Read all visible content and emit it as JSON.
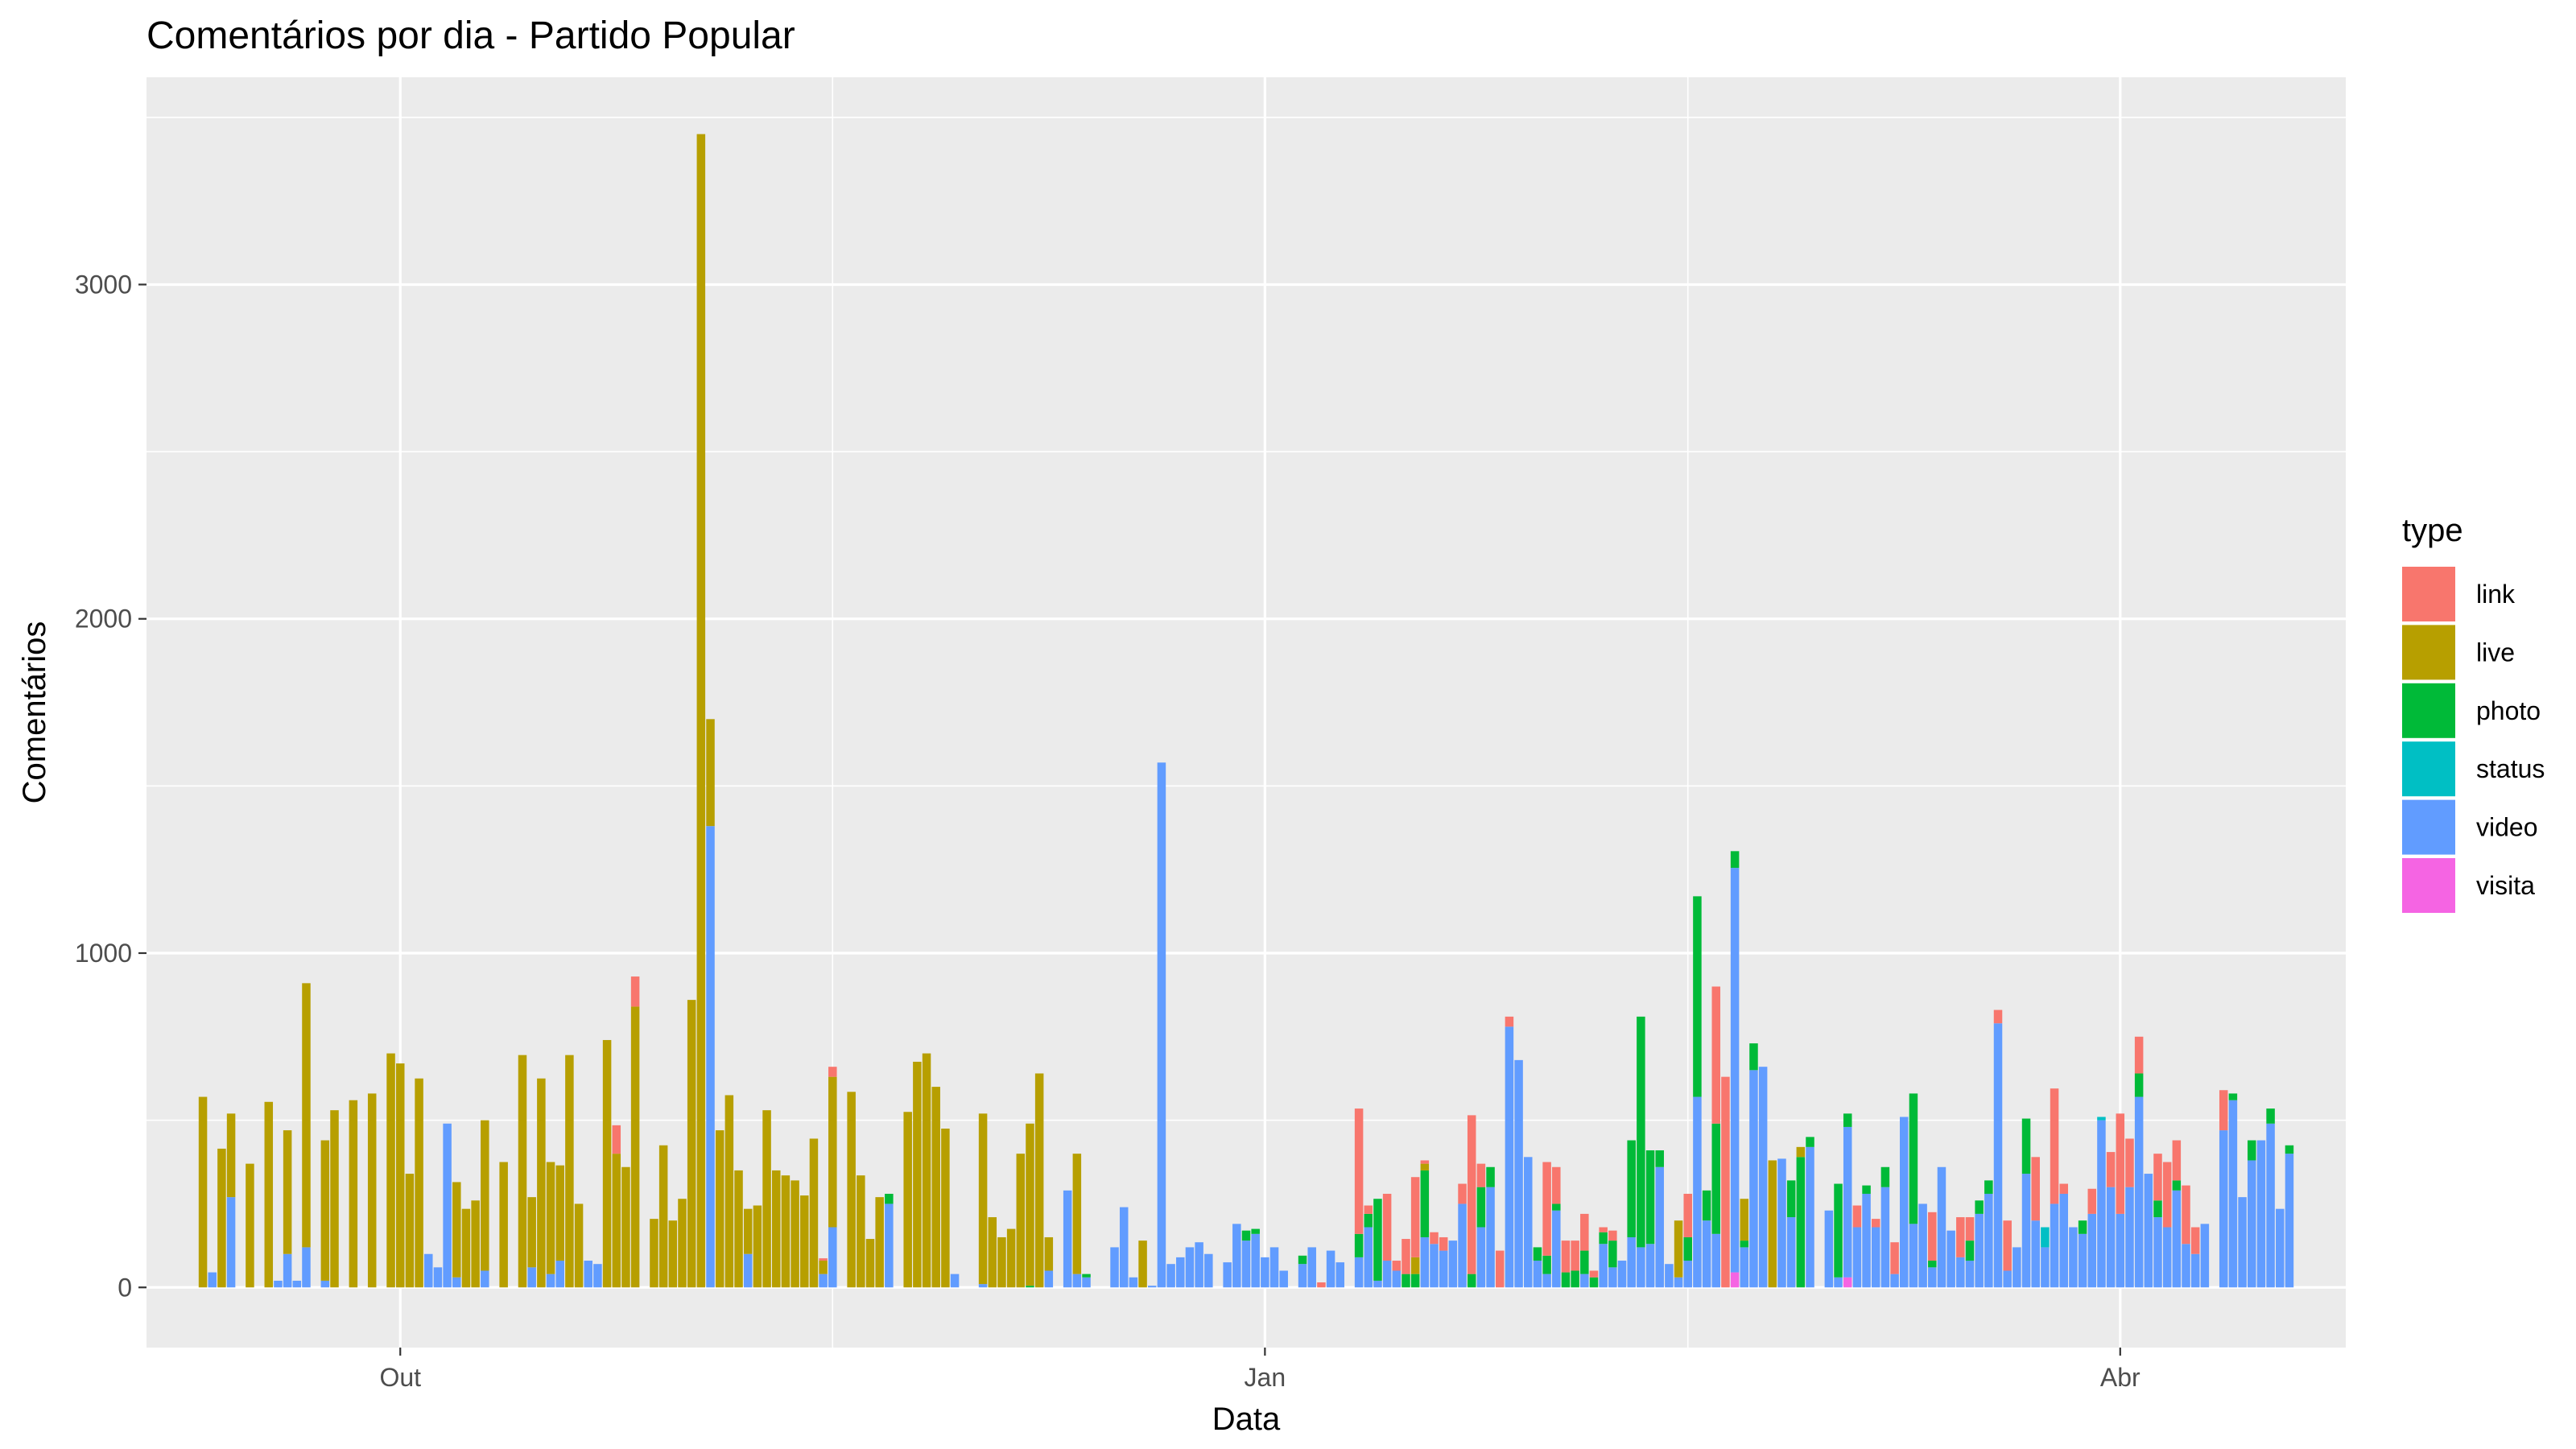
{
  "chart_data": {
    "type": "bar",
    "stacked": true,
    "title": "Comentários por dia - Partido Popular",
    "xlabel": "Data",
    "ylabel": "Comentários",
    "x_axis": {
      "kind": "date",
      "range": [
        "2019-09-04",
        "2020-04-25"
      ],
      "ticks": [
        {
          "date": "2019-10-01",
          "label": "Out"
        },
        {
          "date": "2020-01-01",
          "label": "Jan"
        },
        {
          "date": "2020-04-01",
          "label": "Abr"
        }
      ],
      "minor_gridlines": [
        "2019-11-16",
        "2020-02-15"
      ]
    },
    "y_axis": {
      "ylim": [
        -180,
        3620
      ],
      "ticks": [
        0,
        1000,
        2000,
        3000
      ],
      "minor_gridlines": [
        500,
        1500,
        2500,
        3500
      ]
    },
    "grid": true,
    "legend": {
      "title": "type",
      "position": "right",
      "items": [
        {
          "key": "link",
          "label": "link",
          "color": "#F8766D"
        },
        {
          "key": "live",
          "label": "live",
          "color": "#B79F00"
        },
        {
          "key": "photo",
          "label": "photo",
          "color": "#00BA38"
        },
        {
          "key": "status",
          "label": "status",
          "color": "#00BFC4"
        },
        {
          "key": "video",
          "label": "video",
          "color": "#619CFF"
        },
        {
          "key": "visita",
          "label": "visita",
          "color": "#F564E3"
        }
      ]
    },
    "series_order": [
      "visita",
      "video",
      "status",
      "photo",
      "live",
      "link"
    ],
    "days": [
      {
        "date": "2019-09-10",
        "live": 570
      },
      {
        "date": "2019-09-11",
        "video": 45
      },
      {
        "date": "2019-09-12",
        "live": 415
      },
      {
        "date": "2019-09-13",
        "video": 270,
        "live": 250
      },
      {
        "date": "2019-09-15",
        "live": 370
      },
      {
        "date": "2019-09-17",
        "live": 555
      },
      {
        "date": "2019-09-18",
        "video": 20
      },
      {
        "date": "2019-09-19",
        "video": 100,
        "live": 370
      },
      {
        "date": "2019-09-20",
        "video": 20
      },
      {
        "date": "2019-09-21",
        "video": 120,
        "live": 790
      },
      {
        "date": "2019-09-23",
        "video": 20,
        "live": 420
      },
      {
        "date": "2019-09-24",
        "live": 530
      },
      {
        "date": "2019-09-26",
        "live": 560
      },
      {
        "date": "2019-09-28",
        "live": 580
      },
      {
        "date": "2019-09-30",
        "live": 700
      },
      {
        "date": "2019-10-01",
        "live": 670
      },
      {
        "date": "2019-10-02",
        "live": 340
      },
      {
        "date": "2019-10-03",
        "live": 625
      },
      {
        "date": "2019-10-04",
        "video": 100
      },
      {
        "date": "2019-10-05",
        "video": 60
      },
      {
        "date": "2019-10-06",
        "video": 490
      },
      {
        "date": "2019-10-07",
        "video": 30,
        "live": 285
      },
      {
        "date": "2019-10-08",
        "live": 235
      },
      {
        "date": "2019-10-09",
        "live": 260
      },
      {
        "date": "2019-10-10",
        "video": 50,
        "live": 450
      },
      {
        "date": "2019-10-12",
        "live": 375
      },
      {
        "date": "2019-10-14",
        "live": 695
      },
      {
        "date": "2019-10-15",
        "video": 60,
        "live": 210
      },
      {
        "date": "2019-10-16",
        "live": 625
      },
      {
        "date": "2019-10-17",
        "video": 40,
        "live": 335
      },
      {
        "date": "2019-10-18",
        "video": 80,
        "live": 285
      },
      {
        "date": "2019-10-19",
        "live": 695
      },
      {
        "date": "2019-10-20",
        "live": 250
      },
      {
        "date": "2019-10-21",
        "video": 80
      },
      {
        "date": "2019-10-22",
        "video": 70
      },
      {
        "date": "2019-10-23",
        "live": 740
      },
      {
        "date": "2019-10-24",
        "live": 400,
        "link": 85
      },
      {
        "date": "2019-10-25",
        "live": 360
      },
      {
        "date": "2019-10-26",
        "live": 840,
        "link": 90
      },
      {
        "date": "2019-10-28",
        "live": 205
      },
      {
        "date": "2019-10-29",
        "live": 425
      },
      {
        "date": "2019-10-30",
        "live": 200
      },
      {
        "date": "2019-10-31",
        "live": 265
      },
      {
        "date": "2019-11-01",
        "live": 860
      },
      {
        "date": "2019-11-02",
        "live": 3450
      },
      {
        "date": "2019-11-03",
        "video": 1380,
        "live": 320
      },
      {
        "date": "2019-11-04",
        "live": 470
      },
      {
        "date": "2019-11-05",
        "live": 575
      },
      {
        "date": "2019-11-06",
        "live": 350
      },
      {
        "date": "2019-11-07",
        "video": 100,
        "live": 135
      },
      {
        "date": "2019-11-08",
        "live": 245
      },
      {
        "date": "2019-11-09",
        "live": 530
      },
      {
        "date": "2019-11-10",
        "live": 350
      },
      {
        "date": "2019-11-11",
        "live": 335
      },
      {
        "date": "2019-11-12",
        "live": 320
      },
      {
        "date": "2019-11-13",
        "live": 275
      },
      {
        "date": "2019-11-14",
        "live": 445
      },
      {
        "date": "2019-11-15",
        "video": 40,
        "live": 40,
        "link": 7
      },
      {
        "date": "2019-11-16",
        "video": 180,
        "live": 450,
        "link": 30
      },
      {
        "date": "2019-11-18",
        "live": 585
      },
      {
        "date": "2019-11-19",
        "live": 335
      },
      {
        "date": "2019-11-20",
        "live": 145
      },
      {
        "date": "2019-11-21",
        "live": 270
      },
      {
        "date": "2019-11-22",
        "video": 250,
        "photo": 30
      },
      {
        "date": "2019-11-24",
        "live": 525
      },
      {
        "date": "2019-11-25",
        "live": 675
      },
      {
        "date": "2019-11-26",
        "live": 700
      },
      {
        "date": "2019-11-27",
        "live": 600
      },
      {
        "date": "2019-11-28",
        "live": 475
      },
      {
        "date": "2019-11-29",
        "video": 40
      },
      {
        "date": "2019-12-02",
        "video": 10,
        "live": 510
      },
      {
        "date": "2019-12-03",
        "live": 210
      },
      {
        "date": "2019-12-04",
        "live": 150
      },
      {
        "date": "2019-12-05",
        "live": 175
      },
      {
        "date": "2019-12-06",
        "live": 400
      },
      {
        "date": "2019-12-07",
        "photo": 5,
        "live": 485
      },
      {
        "date": "2019-12-08",
        "live": 640
      },
      {
        "date": "2019-12-09",
        "video": 50,
        "live": 100
      },
      {
        "date": "2019-12-11",
        "video": 290
      },
      {
        "date": "2019-12-12",
        "video": 40,
        "live": 360
      },
      {
        "date": "2019-12-13",
        "video": 30,
        "photo": 10
      },
      {
        "date": "2019-12-16",
        "video": 120
      },
      {
        "date": "2019-12-17",
        "video": 240
      },
      {
        "date": "2019-12-18",
        "video": 30
      },
      {
        "date": "2019-12-19",
        "live": 140
      },
      {
        "date": "2019-12-20",
        "video": 5
      },
      {
        "date": "2019-12-21",
        "video": 1570
      },
      {
        "date": "2019-12-22",
        "video": 70
      },
      {
        "date": "2019-12-23",
        "video": 90
      },
      {
        "date": "2019-12-24",
        "video": 120
      },
      {
        "date": "2019-12-25",
        "video": 135
      },
      {
        "date": "2019-12-26",
        "video": 100
      },
      {
        "date": "2019-12-28",
        "video": 75
      },
      {
        "date": "2019-12-29",
        "video": 190
      },
      {
        "date": "2019-12-30",
        "video": 140,
        "photo": 30
      },
      {
        "date": "2019-12-31",
        "video": 160,
        "photo": 15
      },
      {
        "date": "2020-01-01",
        "video": 90
      },
      {
        "date": "2020-01-02",
        "video": 120
      },
      {
        "date": "2020-01-03",
        "video": 50
      },
      {
        "date": "2020-01-05",
        "video": 70,
        "photo": 25
      },
      {
        "date": "2020-01-06",
        "video": 120
      },
      {
        "date": "2020-01-07",
        "link": 15
      },
      {
        "date": "2020-01-08",
        "video": 110
      },
      {
        "date": "2020-01-09",
        "video": 75
      },
      {
        "date": "2020-01-11",
        "video": 90,
        "photo": 70,
        "link": 375
      },
      {
        "date": "2020-01-12",
        "video": 180,
        "photo": 40,
        "link": 25
      },
      {
        "date": "2020-01-13",
        "video": 20,
        "photo": 245
      },
      {
        "date": "2020-01-14",
        "video": 80,
        "link": 200
      },
      {
        "date": "2020-01-15",
        "video": 50,
        "link": 30
      },
      {
        "date": "2020-01-16",
        "photo": 40,
        "link": 105
      },
      {
        "date": "2020-01-17",
        "photo": 40,
        "live": 50,
        "link": 240
      },
      {
        "date": "2020-01-18",
        "video": 150,
        "photo": 200,
        "live": 20,
        "link": 10
      },
      {
        "date": "2020-01-19",
        "video": 130,
        "link": 35
      },
      {
        "date": "2020-01-20",
        "video": 110,
        "link": 40
      },
      {
        "date": "2020-01-21",
        "video": 140
      },
      {
        "date": "2020-01-22",
        "video": 250,
        "link": 60
      },
      {
        "date": "2020-01-23",
        "photo": 40,
        "link": 475
      },
      {
        "date": "2020-01-24",
        "video": 180,
        "photo": 120,
        "link": 70
      },
      {
        "date": "2020-01-25",
        "video": 300,
        "photo": 60
      },
      {
        "date": "2020-01-26",
        "link": 110
      },
      {
        "date": "2020-01-27",
        "video": 780,
        "link": 30
      },
      {
        "date": "2020-01-28",
        "video": 680
      },
      {
        "date": "2020-01-29",
        "video": 390
      },
      {
        "date": "2020-01-30",
        "video": 80,
        "photo": 40
      },
      {
        "date": "2020-01-31",
        "video": 40,
        "photo": 55,
        "link": 280
      },
      {
        "date": "2020-02-01",
        "video": 230,
        "photo": 20,
        "link": 110
      },
      {
        "date": "2020-02-02",
        "photo": 45,
        "link": 95
      },
      {
        "date": "2020-02-03",
        "photo": 50,
        "link": 90
      },
      {
        "date": "2020-02-04",
        "video": 40,
        "photo": 70,
        "link": 110
      },
      {
        "date": "2020-02-05",
        "photo": 30,
        "link": 20
      },
      {
        "date": "2020-02-06",
        "video": 130,
        "photo": 35,
        "link": 15
      },
      {
        "date": "2020-02-07",
        "video": 60,
        "photo": 80,
        "link": 30
      },
      {
        "date": "2020-02-08",
        "video": 80
      },
      {
        "date": "2020-02-09",
        "video": 150,
        "photo": 290
      },
      {
        "date": "2020-02-10",
        "video": 120,
        "photo": 690
      },
      {
        "date": "2020-02-11",
        "video": 130,
        "photo": 280
      },
      {
        "date": "2020-02-12",
        "video": 360,
        "photo": 50
      },
      {
        "date": "2020-02-13",
        "video": 70
      },
      {
        "date": "2020-02-14",
        "video": 30,
        "live": 170
      },
      {
        "date": "2020-02-15",
        "video": 80,
        "photo": 70,
        "link": 130
      },
      {
        "date": "2020-02-16",
        "video": 570,
        "photo": 600
      },
      {
        "date": "2020-02-17",
        "video": 200,
        "photo": 90
      },
      {
        "date": "2020-02-18",
        "video": 160,
        "photo": 330,
        "link": 410
      },
      {
        "date": "2020-02-19",
        "link": 630
      },
      {
        "date": "2020-02-20",
        "visita": 45,
        "video": 1210,
        "photo": 50
      },
      {
        "date": "2020-02-21",
        "video": 120,
        "photo": 20,
        "live": 125
      },
      {
        "date": "2020-02-22",
        "video": 650,
        "photo": 80
      },
      {
        "date": "2020-02-23",
        "video": 660
      },
      {
        "date": "2020-02-24",
        "live": 380
      },
      {
        "date": "2020-02-25",
        "video": 385
      },
      {
        "date": "2020-02-26",
        "video": 210,
        "photo": 110
      },
      {
        "date": "2020-02-27",
        "photo": 390,
        "live": 30
      },
      {
        "date": "2020-02-28",
        "video": 420,
        "photo": 30
      },
      {
        "date": "2020-03-01",
        "video": 230
      },
      {
        "date": "2020-03-02",
        "video": 30,
        "photo": 280
      },
      {
        "date": "2020-03-03",
        "visita": 30,
        "video": 450,
        "photo": 40
      },
      {
        "date": "2020-03-04",
        "video": 180,
        "link": 65
      },
      {
        "date": "2020-03-05",
        "video": 280,
        "photo": 25
      },
      {
        "date": "2020-03-06",
        "video": 180,
        "link": 25
      },
      {
        "date": "2020-03-07",
        "video": 300,
        "photo": 60
      },
      {
        "date": "2020-03-08",
        "video": 40,
        "link": 95
      },
      {
        "date": "2020-03-09",
        "video": 510
      },
      {
        "date": "2020-03-10",
        "video": 190,
        "photo": 390
      },
      {
        "date": "2020-03-11",
        "video": 250
      },
      {
        "date": "2020-03-12",
        "video": 60,
        "photo": 20,
        "link": 145
      },
      {
        "date": "2020-03-13",
        "video": 360
      },
      {
        "date": "2020-03-14",
        "video": 170
      },
      {
        "date": "2020-03-15",
        "video": 90,
        "link": 120
      },
      {
        "date": "2020-03-16",
        "video": 80,
        "photo": 60,
        "link": 70
      },
      {
        "date": "2020-03-17",
        "video": 220,
        "photo": 40
      },
      {
        "date": "2020-03-18",
        "video": 280,
        "photo": 40
      },
      {
        "date": "2020-03-19",
        "video": 790,
        "link": 40
      },
      {
        "date": "2020-03-20",
        "video": 50,
        "link": 150
      },
      {
        "date": "2020-03-21",
        "video": 120
      },
      {
        "date": "2020-03-22",
        "video": 340,
        "photo": 165
      },
      {
        "date": "2020-03-23",
        "video": 200,
        "link": 190
      },
      {
        "date": "2020-03-24",
        "video": 120,
        "status": 60
      },
      {
        "date": "2020-03-25",
        "video": 250,
        "link": 345
      },
      {
        "date": "2020-03-26",
        "video": 280,
        "link": 30
      },
      {
        "date": "2020-03-27",
        "video": 180
      },
      {
        "date": "2020-03-28",
        "video": 160,
        "photo": 40
      },
      {
        "date": "2020-03-29",
        "video": 220,
        "link": 75
      },
      {
        "date": "2020-03-30",
        "video": 500,
        "status": 10
      },
      {
        "date": "2020-03-31",
        "video": 300,
        "link": 105
      },
      {
        "date": "2020-04-01",
        "video": 220,
        "link": 300
      },
      {
        "date": "2020-04-02",
        "video": 300,
        "link": 145
      },
      {
        "date": "2020-04-03",
        "video": 570,
        "photo": 70,
        "link": 110
      },
      {
        "date": "2020-04-04",
        "video": 340
      },
      {
        "date": "2020-04-05",
        "video": 210,
        "photo": 50,
        "link": 140
      },
      {
        "date": "2020-04-06",
        "video": 180,
        "link": 195
      },
      {
        "date": "2020-04-07",
        "video": 290,
        "photo": 30,
        "link": 120
      },
      {
        "date": "2020-04-08",
        "video": 130,
        "link": 175
      },
      {
        "date": "2020-04-09",
        "video": 100,
        "link": 80
      },
      {
        "date": "2020-04-10",
        "video": 190
      },
      {
        "date": "2020-04-12",
        "video": 470,
        "link": 120
      },
      {
        "date": "2020-04-13",
        "video": 560,
        "photo": 20
      },
      {
        "date": "2020-04-14",
        "video": 270
      },
      {
        "date": "2020-04-15",
        "video": 380,
        "photo": 60
      },
      {
        "date": "2020-04-16",
        "video": 440
      },
      {
        "date": "2020-04-17",
        "video": 490,
        "photo": 45
      },
      {
        "date": "2020-04-18",
        "video": 235
      },
      {
        "date": "2020-04-19",
        "video": 400,
        "photo": 25
      }
    ]
  }
}
